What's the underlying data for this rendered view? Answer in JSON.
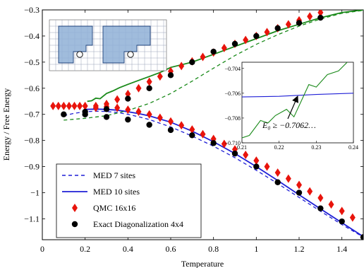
{
  "chart_data": {
    "type": "line",
    "xlabel": "Temperature",
    "ylabel": "Energy / Free Energy",
    "xlim": [
      0,
      1.5
    ],
    "ylim": [
      -1.18,
      -0.3
    ],
    "xticks": [
      "0",
      "0.2",
      "0.4",
      "0.6",
      "0.8",
      "1",
      "1.2",
      "1.4"
    ],
    "yticks": [
      "-0.3",
      "-0.4",
      "-0.5",
      "-0.6",
      "-0.7",
      "-0.8",
      "-0.9",
      "-1",
      "-1.1"
    ],
    "grid": false,
    "legend": {
      "placement": "bottom-left",
      "entries": [
        "MED 7 sites",
        "MED 10 sites",
        "QMC 16x16",
        "Exact Diagonalization 4x4"
      ]
    },
    "series": [
      {
        "name": "MED 7 sites",
        "style": "dashed",
        "color": "#1f1fd6",
        "x": [
          0.1,
          0.15,
          0.2,
          0.25,
          0.3,
          0.35,
          0.4,
          0.45,
          0.5,
          0.6,
          0.7,
          0.8,
          0.9,
          1.0,
          1.1,
          1.2,
          1.3,
          1.4,
          1.5
        ],
        "y": [
          -0.705,
          -0.696,
          -0.69,
          -0.688,
          -0.689,
          -0.693,
          -0.7,
          -0.709,
          -0.72,
          -0.748,
          -0.783,
          -0.822,
          -0.866,
          -0.914,
          -0.965,
          -1.018,
          -1.071,
          -1.122,
          -1.17
        ]
      },
      {
        "name": "MED 10 sites",
        "style": "solid",
        "color": "#1f1fd6",
        "x": [
          0.2,
          0.25,
          0.3,
          0.35,
          0.4,
          0.45,
          0.5,
          0.6,
          0.7,
          0.8,
          0.9,
          1.0,
          1.1,
          1.2,
          1.3,
          1.4,
          1.5
        ],
        "y": [
          -0.681,
          -0.68,
          -0.681,
          -0.684,
          -0.69,
          -0.697,
          -0.706,
          -0.73,
          -0.764,
          -0.805,
          -0.85,
          -0.9,
          -0.953,
          -1.008,
          -1.062,
          -1.115,
          -1.168
        ]
      },
      {
        "name": "MED 7 sites free energy",
        "style": "dashed",
        "color": "#1a8a1a",
        "x": [
          0.1,
          0.2,
          0.3,
          0.4,
          0.5,
          0.6,
          0.7,
          0.8,
          0.9,
          1.0,
          1.1,
          1.2,
          1.3,
          1.4,
          1.5
        ],
        "y": [
          -0.722,
          -0.715,
          -0.705,
          -0.685,
          -0.658,
          -0.62,
          -0.573,
          -0.523,
          -0.475,
          -0.432,
          -0.395,
          -0.362,
          -0.335,
          -0.313,
          -0.302
        ]
      },
      {
        "name": "MED 10 sites free energy",
        "style": "solid",
        "color": "#1a8a1a",
        "x": [
          0.21,
          0.23,
          0.25,
          0.27,
          0.3,
          0.33,
          0.36,
          0.4,
          0.45,
          0.5,
          0.55,
          0.6,
          0.7,
          0.8,
          0.9,
          1.0,
          1.1,
          1.2,
          1.3,
          1.4,
          1.5
        ],
        "y": [
          -0.65,
          -0.648,
          -0.638,
          -0.64,
          -0.62,
          -0.61,
          -0.598,
          -0.585,
          -0.57,
          -0.555,
          -0.54,
          -0.52,
          -0.5,
          -0.47,
          -0.44,
          -0.41,
          -0.38,
          -0.355,
          -0.33,
          -0.31,
          -0.3
        ]
      },
      {
        "name": "QMC 16x16",
        "style": "marker-diamond",
        "color": "#e8140c",
        "x": [
          0.05,
          0.075,
          0.1,
          0.125,
          0.15,
          0.175,
          0.2,
          0.25,
          0.3,
          0.35,
          0.4,
          0.45,
          0.5,
          0.55,
          0.6,
          0.65,
          0.7,
          0.75,
          0.8,
          0.85,
          0.9,
          0.95,
          1.0,
          1.05,
          1.1,
          1.15,
          1.2,
          1.25,
          1.3,
          1.35,
          1.4,
          1.45
        ],
        "y": [
          -0.668,
          -0.668,
          -0.668,
          -0.668,
          -0.668,
          -0.668,
          -0.668,
          -0.668,
          -0.67,
          -0.675,
          -0.682,
          -0.69,
          -0.7,
          -0.713,
          -0.727,
          -0.742,
          -0.758,
          -0.776,
          -0.794,
          -0.813,
          -0.834,
          -0.855,
          -0.877,
          -0.9,
          -0.923,
          -0.946,
          -0.97,
          -0.995,
          -1.02,
          -1.045,
          -1.07,
          -1.095
        ]
      },
      {
        "name": "QMC 16x16 free energy",
        "style": "marker-diamond",
        "color": "#e8140c",
        "x": [
          0.25,
          0.3,
          0.35,
          0.4,
          0.45,
          0.5,
          0.55,
          0.6,
          0.65,
          0.7,
          0.75,
          0.8,
          0.85,
          0.9,
          0.95,
          1.0,
          1.05,
          1.1,
          1.15,
          1.2,
          1.25,
          1.3
        ],
        "y": [
          -0.675,
          -0.66,
          -0.643,
          -0.622,
          -0.6,
          -0.575,
          -0.555,
          -0.535,
          -0.515,
          -0.497,
          -0.48,
          -0.463,
          -0.446,
          -0.43,
          -0.415,
          -0.4,
          -0.385,
          -0.37,
          -0.355,
          -0.34,
          -0.325,
          -0.31
        ]
      },
      {
        "name": "Exact Diagonalization 4x4",
        "style": "marker-circle",
        "color": "#000000",
        "x": [
          0.1,
          0.2,
          0.3,
          0.4,
          0.5,
          0.6,
          0.7,
          0.8,
          0.9,
          1.0,
          1.1,
          1.2,
          1.3,
          1.4,
          1.5
        ],
        "y": [
          -0.7,
          -0.7,
          -0.71,
          -0.72,
          -0.74,
          -0.76,
          -0.78,
          -0.81,
          -0.85,
          -0.9,
          -0.96,
          -1.0,
          -1.06,
          -1.11,
          -1.17
        ]
      },
      {
        "name": "Exact Diagonalization 4x4 free energy",
        "style": "marker-circle",
        "color": "#000000",
        "x": [
          0.2,
          0.3,
          0.4,
          0.5,
          0.6,
          0.7,
          0.8,
          0.9,
          1.0,
          1.1,
          1.2,
          1.3
        ],
        "y": [
          -0.69,
          -0.68,
          -0.64,
          -0.6,
          -0.55,
          -0.5,
          -0.46,
          -0.43,
          -0.4,
          -0.37,
          -0.35,
          -0.33
        ]
      }
    ],
    "inset_plot": {
      "xlim": [
        0.21,
        0.24
      ],
      "ylim": [
        -0.71,
        -0.7035
      ],
      "xticks": [
        "0.21",
        "0.22",
        "0.23",
        "0.24"
      ],
      "yticks": [
        "-0.704",
        "-0.706",
        "-0.708",
        "-0.710"
      ],
      "annotation": "E₀ ≥ −0.7062…",
      "series": [
        {
          "name": "blue",
          "color": "#1f1fd6",
          "x": [
            0.21,
            0.22,
            0.23,
            0.24
          ],
          "y": [
            -0.7063,
            -0.70625,
            -0.7061,
            -0.706
          ]
        },
        {
          "name": "green",
          "color": "#1a8a1a",
          "x": [
            0.21,
            0.212,
            0.215,
            0.217,
            0.219,
            0.222,
            0.224,
            0.226,
            0.228,
            0.23,
            0.233,
            0.236,
            0.24
          ],
          "y": [
            -0.7096,
            -0.7094,
            -0.7082,
            -0.7084,
            -0.7078,
            -0.7073,
            -0.7079,
            -0.7066,
            -0.7053,
            -0.7055,
            -0.7045,
            -0.7042,
            -0.703
          ]
        }
      ],
      "arrow_target": {
        "x": 0.2262,
        "y": -0.7062
      }
    }
  }
}
